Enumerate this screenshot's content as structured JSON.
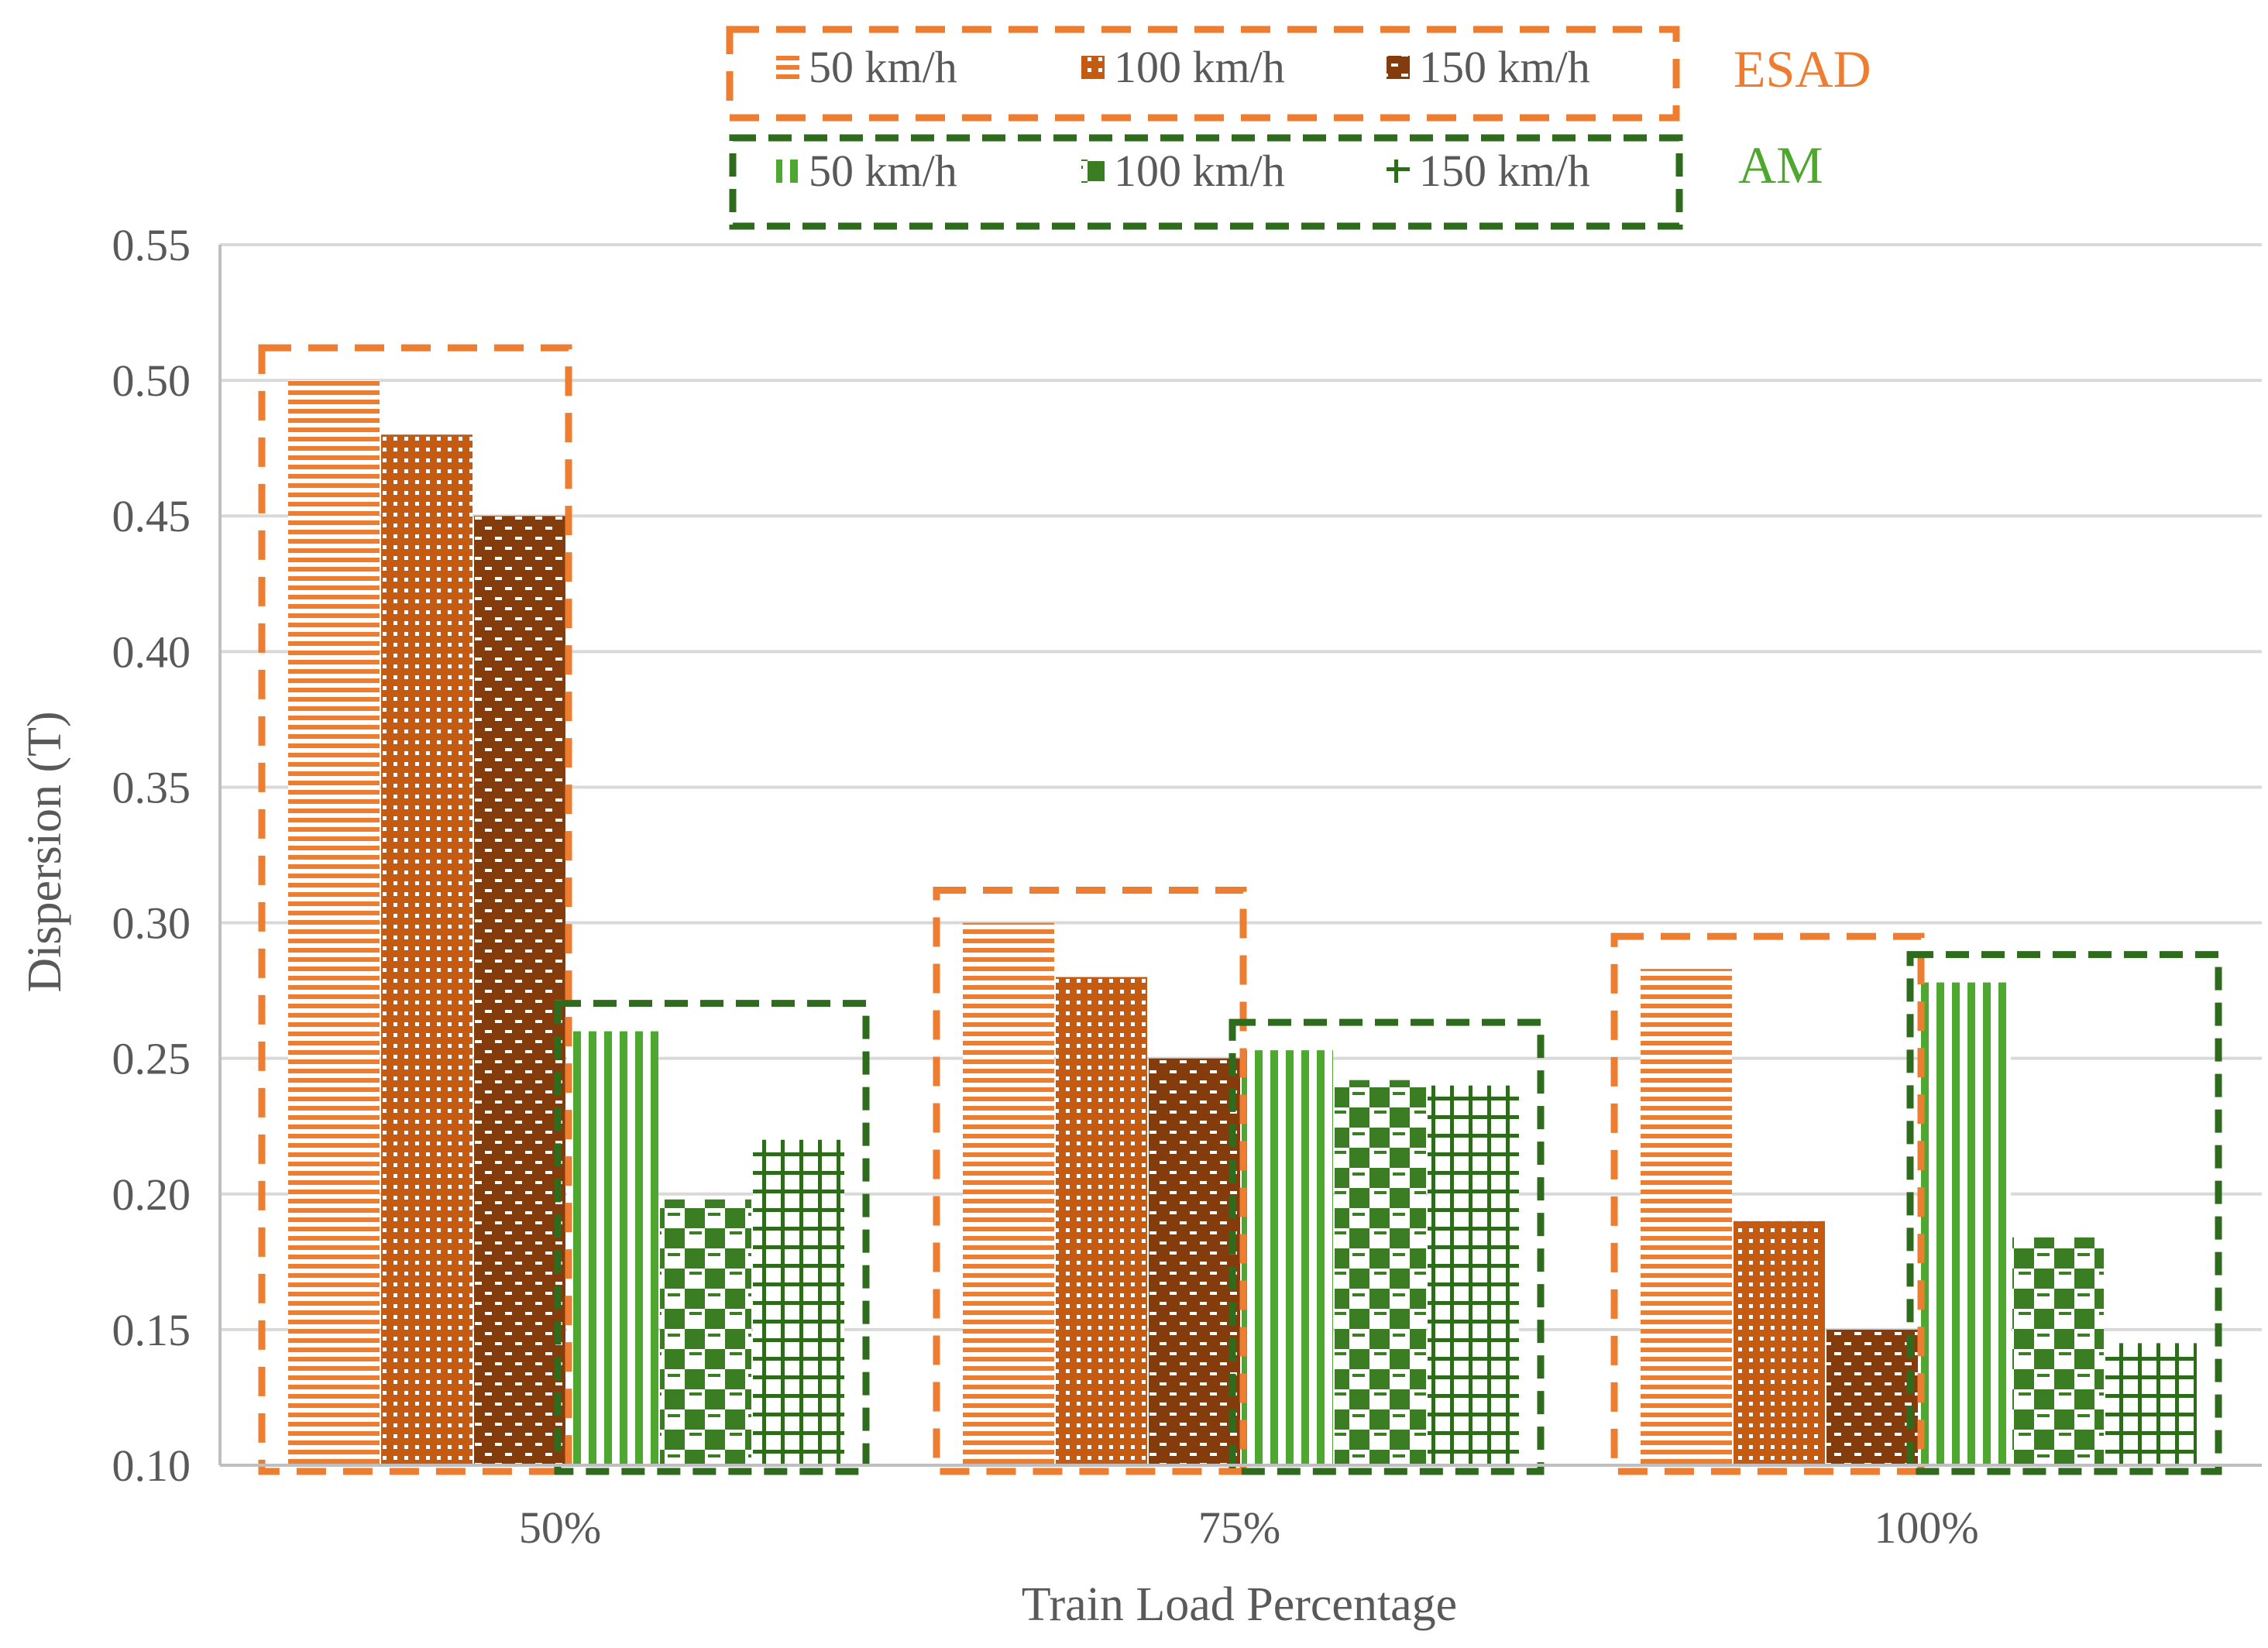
{
  "chart_data": {
    "type": "bar",
    "title": "",
    "xlabel": "Train Load Percentage",
    "ylabel": "Dispersion (T)",
    "ylim": [
      0.1,
      0.55
    ],
    "yticks": [
      "0.10",
      "0.15",
      "0.20",
      "0.25",
      "0.30",
      "0.35",
      "0.40",
      "0.45",
      "0.50",
      "0.55"
    ],
    "grid": true,
    "categories": [
      "50%",
      "75%",
      "100%"
    ],
    "groups": [
      {
        "name": "ESAD",
        "color": "#ED7D31"
      },
      {
        "name": "AM",
        "color": "#4EA72E"
      }
    ],
    "series": [
      {
        "name": "50 km/h",
        "group": "ESAD",
        "color": "#ED7D31",
        "pattern": "hlines",
        "values": [
          0.5,
          0.3,
          0.283
        ]
      },
      {
        "name": "100 km/h",
        "group": "ESAD",
        "color": "#C55A11",
        "pattern": "dots",
        "values": [
          0.48,
          0.28,
          0.19
        ]
      },
      {
        "name": "150 km/h",
        "group": "ESAD",
        "color": "#843C0C",
        "pattern": "weave",
        "values": [
          0.45,
          0.25,
          0.15
        ]
      },
      {
        "name": "50 km/h",
        "group": "AM",
        "color": "#4EA72E",
        "pattern": "vlines",
        "values": [
          0.26,
          0.253,
          0.278
        ]
      },
      {
        "name": "100 km/h",
        "group": "AM",
        "color": "#3A7D22",
        "pattern": "checker",
        "values": [
          0.198,
          0.242,
          0.184
        ]
      },
      {
        "name": "150 km/h",
        "group": "AM",
        "color": "#2E6B1C",
        "pattern": "grid",
        "values": [
          0.22,
          0.24,
          0.145
        ]
      }
    ],
    "legend_position": "top-center"
  }
}
